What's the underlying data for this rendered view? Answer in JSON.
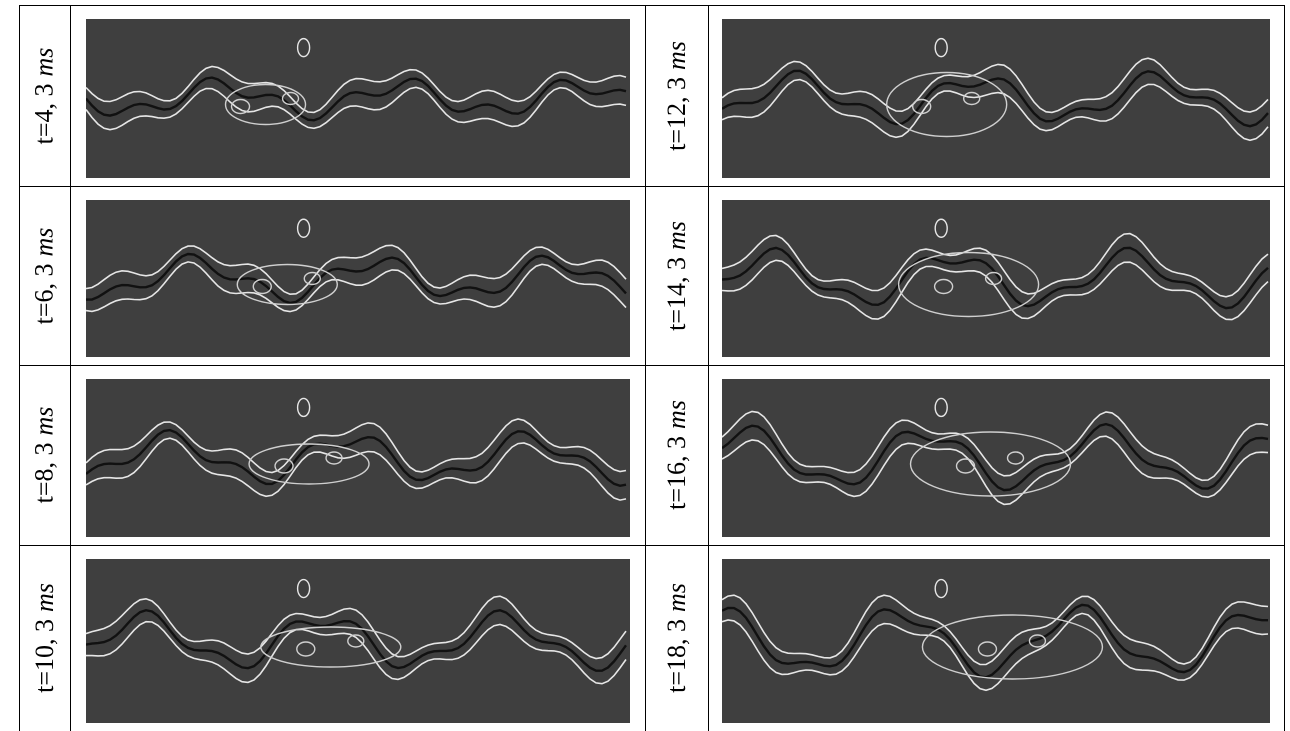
{
  "rows": [
    {
      "left": {
        "time": "t=4, 3",
        "unit": "ms"
      },
      "right": {
        "time": "t=12, 3",
        "unit": "ms"
      }
    },
    {
      "left": {
        "time": "t=6, 3",
        "unit": "ms"
      },
      "right": {
        "time": "t=14, 3",
        "unit": "ms"
      }
    },
    {
      "left": {
        "time": "t=8, 3",
        "unit": "ms"
      },
      "right": {
        "time": "t=16, 3",
        "unit": "ms"
      }
    },
    {
      "left": {
        "time": "t=10, 3",
        "unit": "ms"
      },
      "right": {
        "time": "t=18, 3",
        "unit": "ms"
      }
    }
  ]
}
